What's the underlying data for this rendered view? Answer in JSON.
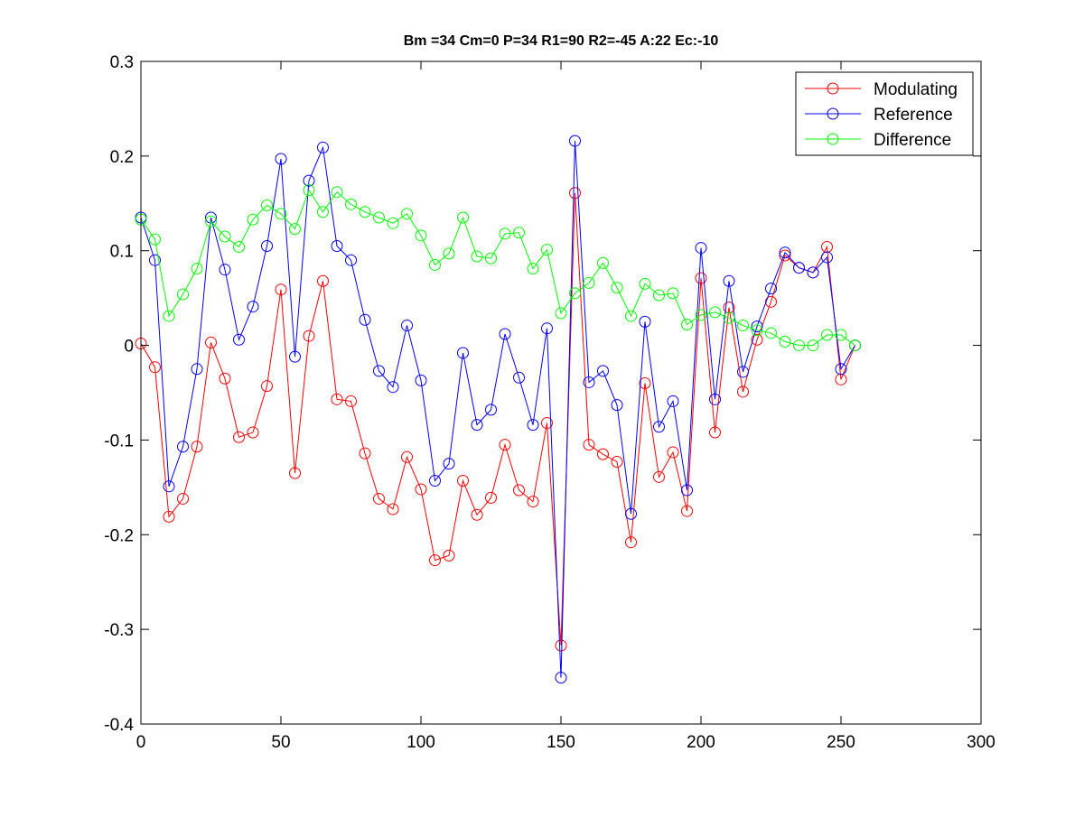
{
  "chart_data": {
    "type": "line",
    "title": "Bm =34  Cm=0  P=34  R1=90  R2=-45  A:22  Ec:-10",
    "xlabel": "",
    "ylabel": "",
    "xlim": [
      0,
      300
    ],
    "ylim": [
      -0.4,
      0.3
    ],
    "xticks": [
      0,
      50,
      100,
      150,
      200,
      250,
      300
    ],
    "yticks": [
      -0.4,
      -0.3,
      -0.2,
      -0.1,
      0,
      0.1,
      0.2,
      0.3
    ],
    "xtick_labels": [
      "0",
      "50",
      "100",
      "150",
      "200",
      "250",
      "300"
    ],
    "ytick_labels": [
      "-0.4",
      "-0.3",
      "-0.2",
      "-0.1",
      "0",
      "0.1",
      "0.2",
      "0.3"
    ],
    "grid": false,
    "legend_position": "top-right",
    "marker": "circle",
    "x": [
      0,
      5,
      10,
      15,
      20,
      25,
      30,
      35,
      40,
      45,
      50,
      55,
      60,
      65,
      70,
      75,
      80,
      85,
      90,
      95,
      100,
      105,
      110,
      115,
      120,
      125,
      130,
      135,
      140,
      145,
      150,
      155,
      160,
      165,
      170,
      175,
      180,
      185,
      190,
      195,
      200,
      205,
      210,
      215,
      220,
      225,
      230,
      235,
      240,
      245,
      250,
      255
    ],
    "series": [
      {
        "name": "Modulating",
        "color": "#ff0000",
        "values": [
          0.002,
          -0.023,
          -0.181,
          -0.162,
          -0.107,
          0.003,
          -0.035,
          -0.097,
          -0.092,
          -0.043,
          0.059,
          -0.135,
          0.01,
          0.068,
          -0.057,
          -0.059,
          -0.114,
          -0.162,
          -0.173,
          -0.118,
          -0.152,
          -0.227,
          -0.222,
          -0.143,
          -0.179,
          -0.161,
          -0.105,
          -0.153,
          -0.165,
          -0.082,
          -0.317,
          0.161,
          -0.105,
          -0.115,
          -0.123,
          -0.208,
          -0.04,
          -0.139,
          -0.113,
          -0.175,
          0.071,
          -0.092,
          0.04,
          -0.049,
          0.006,
          0.046,
          0.095,
          0.082,
          0.077,
          0.104,
          -0.036,
          0.0
        ]
      },
      {
        "name": "Reference",
        "color": "#0000ff",
        "values": [
          0.135,
          0.09,
          -0.149,
          -0.107,
          -0.025,
          0.135,
          0.08,
          0.006,
          0.041,
          0.105,
          0.197,
          -0.012,
          0.174,
          0.209,
          0.105,
          0.09,
          0.027,
          -0.027,
          -0.044,
          0.021,
          -0.037,
          -0.143,
          -0.125,
          -0.008,
          -0.084,
          -0.068,
          0.012,
          -0.034,
          -0.084,
          0.018,
          -0.351,
          0.216,
          -0.039,
          -0.027,
          -0.063,
          -0.178,
          0.025,
          -0.086,
          -0.059,
          -0.153,
          0.103,
          -0.057,
          0.068,
          -0.028,
          0.02,
          0.06,
          0.098,
          0.082,
          0.077,
          0.093,
          -0.025,
          0.0
        ]
      },
      {
        "name": "Difference",
        "color": "#00ff00",
        "values": [
          0.133,
          0.112,
          0.031,
          0.054,
          0.081,
          0.131,
          0.115,
          0.104,
          0.133,
          0.148,
          0.139,
          0.123,
          0.164,
          0.141,
          0.162,
          0.149,
          0.141,
          0.135,
          0.129,
          0.139,
          0.116,
          0.085,
          0.097,
          0.135,
          0.094,
          0.092,
          0.118,
          0.119,
          0.081,
          0.101,
          0.034,
          0.055,
          0.066,
          0.087,
          0.061,
          0.031,
          0.065,
          0.053,
          0.055,
          0.022,
          0.032,
          0.035,
          0.029,
          0.021,
          0.016,
          0.013,
          0.004,
          0.0,
          0.0,
          0.011,
          0.011,
          0.0
        ]
      }
    ]
  }
}
